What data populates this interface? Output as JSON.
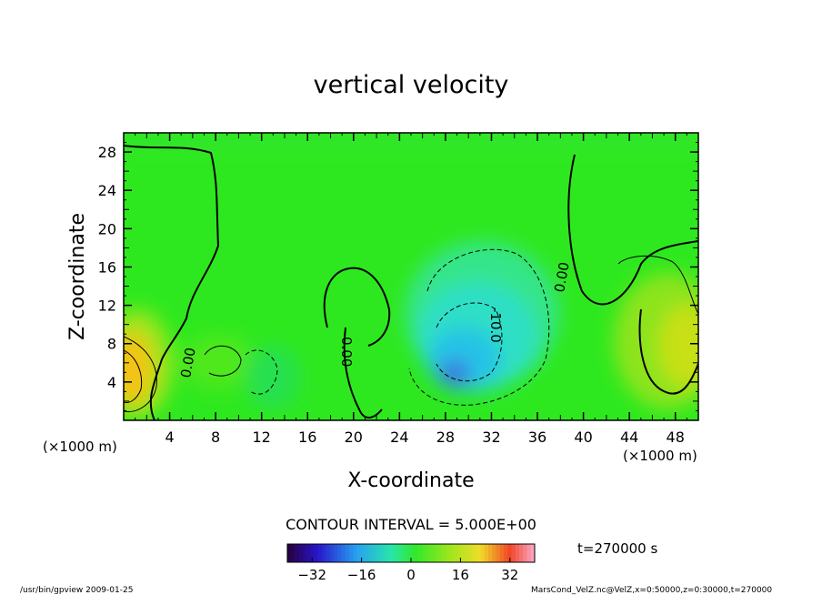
{
  "chart_data": {
    "type": "heatmap",
    "title": "vertical velocity",
    "xlabel": "X-coordinate",
    "ylabel": "Z-coordinate",
    "x_unit": "(×1000 m)",
    "y_unit": "(×1000 m)",
    "xlim": [
      0,
      50
    ],
    "ylim": [
      0,
      30
    ],
    "x_ticks": [
      4,
      8,
      12,
      16,
      20,
      24,
      28,
      32,
      36,
      40,
      44,
      48
    ],
    "y_ticks": [
      4,
      8,
      12,
      16,
      20,
      24,
      28
    ],
    "contour_interval_text": "CONTOUR INTERVAL = 5.000E+00",
    "contour_labels": [
      {
        "text": "0.00",
        "x": 5.8,
        "y": 6.0
      },
      {
        "text": "0.00",
        "x": 19.6,
        "y": 7.5
      },
      {
        "text": "0.00",
        "x": 38.8,
        "y": 15.0
      },
      {
        "text": "-10.0",
        "x": 32.0,
        "y": 10.5
      }
    ],
    "field_features": [
      {
        "name": "updraft-left",
        "x": 0.5,
        "y": 5.5,
        "value": 18
      },
      {
        "name": "updraft-right",
        "x": 49,
        "y": 8,
        "value": 14
      },
      {
        "name": "downdraft-center",
        "x": 29.5,
        "y": 4.5,
        "value": -30
      },
      {
        "name": "weak-down-left",
        "x": 8.5,
        "y": 6.5,
        "value": 5
      },
      {
        "name": "weak-down-center",
        "x": 31,
        "y": 9,
        "value": -14
      }
    ],
    "colorbar": {
      "ticks": [
        -32,
        -16,
        0,
        16,
        32
      ],
      "range": [
        -40,
        40
      ]
    },
    "time_label": "t=270000 s"
  },
  "footer": {
    "left": "/usr/bin/gpview  2009-01-25",
    "right": "MarsCond_VelZ.nc@VelZ,x=0:50000,z=0:30000,t=270000"
  }
}
